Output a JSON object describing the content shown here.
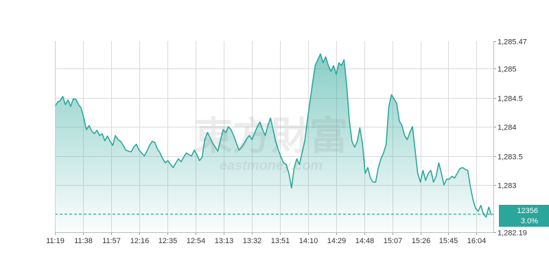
{
  "chart_data": {
    "type": "area",
    "title": "",
    "xlabel": "",
    "ylabel": "",
    "y_axis_position": "right",
    "ylim": [
      1282.19,
      1285.47
    ],
    "y_ticks": [
      1282.19,
      1283,
      1283.5,
      1284,
      1284.5,
      1285,
      1285.47
    ],
    "y_tick_labels": [
      "1,282.19",
      "1,283",
      "1,283.5",
      "1,284",
      "1,284.5",
      "1,285",
      "1,285.47"
    ],
    "x_tick_labels": [
      "11:19",
      "11:38",
      "11:57",
      "12:16",
      "12:35",
      "12:54",
      "13:13",
      "13:32",
      "13:51",
      "14:10",
      "14:29",
      "14:48",
      "15:07",
      "15:26",
      "15:45",
      "16:04"
    ],
    "grid": true,
    "line_color": "#2aa69a",
    "fill_color": "#2aa69a",
    "reference_line": {
      "value": 1282.5,
      "style": "dashed",
      "color": "#2aa69a"
    },
    "series": [
      {
        "values": [
          1284.35,
          1284.42,
          1284.45,
          1284.52,
          1284.38,
          1284.46,
          1284.35,
          1284.48,
          1284.47,
          1284.38,
          1284.32,
          1284.15,
          1283.95,
          1284.02,
          1283.93,
          1283.88,
          1283.94,
          1283.85,
          1283.88,
          1283.76,
          1283.84,
          1283.75,
          1283.68,
          1283.85,
          1283.78,
          1283.75,
          1283.68,
          1283.6,
          1283.58,
          1283.57,
          1283.65,
          1283.7,
          1283.6,
          1283.55,
          1283.5,
          1283.58,
          1283.68,
          1283.75,
          1283.73,
          1283.62,
          1283.55,
          1283.45,
          1283.38,
          1283.42,
          1283.35,
          1283.3,
          1283.38,
          1283.45,
          1283.4,
          1283.48,
          1283.55,
          1283.52,
          1283.5,
          1283.6,
          1283.52,
          1283.42,
          1283.48,
          1283.78,
          1283.9,
          1283.82,
          1283.72,
          1283.65,
          1283.58,
          1283.78,
          1283.95,
          1283.9,
          1284.0,
          1283.95,
          1283.85,
          1283.72,
          1283.6,
          1283.65,
          1283.72,
          1283.8,
          1283.85,
          1283.78,
          1283.9,
          1284.0,
          1284.08,
          1283.95,
          1283.85,
          1284.02,
          1284.15,
          1283.95,
          1283.75,
          1283.6,
          1283.48,
          1283.38,
          1283.35,
          1283.2,
          1282.95,
          1283.3,
          1283.45,
          1283.35,
          1283.55,
          1283.75,
          1284.1,
          1284.42,
          1284.75,
          1285.05,
          1285.15,
          1285.25,
          1285.1,
          1285.2,
          1285.05,
          1284.95,
          1285.05,
          1284.9,
          1285.1,
          1285.05,
          1285.15,
          1284.7,
          1284.1,
          1283.75,
          1283.65,
          1283.75,
          1283.98,
          1283.7,
          1283.2,
          1283.3,
          1283.12,
          1283.05,
          1283.05,
          1283.3,
          1283.45,
          1283.55,
          1283.7,
          1284.35,
          1284.55,
          1284.48,
          1284.4,
          1284.1,
          1284.02,
          1283.85,
          1283.78,
          1283.9,
          1284.0,
          1283.6,
          1283.2,
          1283.05,
          1283.25,
          1283.08,
          1283.2,
          1283.25,
          1283.05,
          1283.15,
          1283.38,
          1283.2,
          1283.0,
          1283.1,
          1283.1,
          1283.15,
          1283.12,
          1283.2,
          1283.28,
          1283.3,
          1283.27,
          1283.25,
          1282.98,
          1282.75,
          1282.6,
          1282.55,
          1282.65,
          1282.5,
          1282.45,
          1282.62,
          1282.48
        ]
      }
    ]
  },
  "price_badge": {
    "value": "12356",
    "percent": "3.0%"
  },
  "watermark": {
    "main": "東方財富",
    "sub": "eastmoney.com"
  }
}
